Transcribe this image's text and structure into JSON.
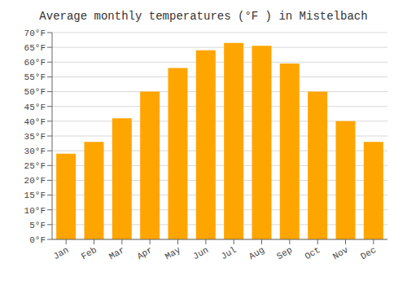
{
  "chart_data": {
    "type": "bar",
    "title": "Average monthly temperatures (°F ) in Mistelbach",
    "categories": [
      "Jan",
      "Feb",
      "Mar",
      "Apr",
      "May",
      "Jun",
      "Jul",
      "Aug",
      "Sep",
      "Oct",
      "Nov",
      "Dec"
    ],
    "values": [
      29,
      33,
      41,
      50,
      58,
      64,
      66.5,
      65.5,
      59.5,
      50,
      40,
      33
    ],
    "color": "#FFA500",
    "ylim": [
      0,
      70
    ],
    "yticks": [
      {
        "value": 0,
        "label": "0°F"
      },
      {
        "value": 5,
        "label": "5°F"
      },
      {
        "value": 10,
        "label": "10°F"
      },
      {
        "value": 15,
        "label": "15°F"
      },
      {
        "value": 20,
        "label": "20°F"
      },
      {
        "value": 25,
        "label": "25°F"
      },
      {
        "value": 30,
        "label": "30°F"
      },
      {
        "value": 35,
        "label": "35°F"
      },
      {
        "value": 40,
        "label": "40°F"
      },
      {
        "value": 45,
        "label": "45°F"
      },
      {
        "value": 50,
        "label": "50°F"
      },
      {
        "value": 55,
        "label": "55°F"
      },
      {
        "value": 60,
        "label": "60°F"
      },
      {
        "value": 65,
        "label": "65°F"
      },
      {
        "value": 70,
        "label": "70°F"
      }
    ],
    "grid": true
  }
}
